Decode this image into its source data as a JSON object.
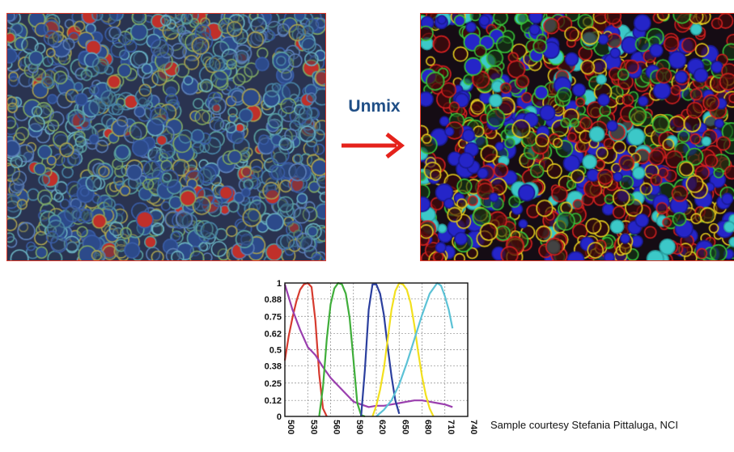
{
  "header": {
    "arrow_label": "Unmix"
  },
  "images": {
    "left": {
      "name": "mixed-fluorescence-image"
    },
    "right": {
      "name": "unmixed-fluorescence-image"
    }
  },
  "arrow": {
    "color": "#e5221b"
  },
  "credit": {
    "text": "Sample courtesy Stefania Pittaluga, NCI"
  },
  "chart_data": {
    "type": "line",
    "xlabel": "",
    "ylabel": "",
    "x_ticks": [
      "500",
      "530",
      "560",
      "590",
      "620",
      "650",
      "680",
      "710",
      "740"
    ],
    "y_ticks": [
      "0",
      "0.12",
      "0.25",
      "0.38",
      "0.5",
      "0.62",
      "0.75",
      "0.88",
      "1"
    ],
    "xlim": [
      500,
      740
    ],
    "ylim": [
      0,
      1
    ],
    "grid": true,
    "series": [
      {
        "color": "#d63b2f",
        "x": [
          500,
          505,
          510,
          515,
          520,
          525,
          530,
          535,
          540,
          545,
          550,
          555
        ],
        "y": [
          0.42,
          0.6,
          0.74,
          0.86,
          0.95,
          0.99,
          1.0,
          0.97,
          0.72,
          0.32,
          0.06,
          0
        ]
      },
      {
        "color": "#9a3fae",
        "x": [
          500,
          510,
          520,
          530,
          540,
          550,
          560,
          570,
          580,
          590,
          600,
          610,
          620,
          630,
          640,
          650,
          660,
          670,
          680,
          690,
          700,
          710,
          720
        ],
        "y": [
          0.99,
          0.8,
          0.65,
          0.52,
          0.46,
          0.37,
          0.29,
          0.23,
          0.17,
          0.11,
          0.09,
          0.07,
          0.08,
          0.08,
          0.09,
          0.1,
          0.11,
          0.12,
          0.12,
          0.11,
          0.1,
          0.09,
          0.07
        ]
      },
      {
        "color": "#3fae3a",
        "x": [
          545,
          550,
          555,
          560,
          565,
          570,
          575,
          580,
          585,
          590,
          595,
          600,
          605
        ],
        "y": [
          0,
          0.22,
          0.58,
          0.84,
          0.96,
          1.0,
          0.99,
          0.92,
          0.74,
          0.42,
          0.1,
          0.01,
          0
        ]
      },
      {
        "color": "#2b3f9e",
        "x": [
          600,
          605,
          610,
          615,
          620,
          625,
          630,
          635,
          640,
          645,
          650
        ],
        "y": [
          0,
          0.35,
          0.8,
          0.99,
          0.99,
          0.92,
          0.76,
          0.52,
          0.3,
          0.12,
          0.02
        ]
      },
      {
        "color": "#f2e01e",
        "x": [
          615,
          620,
          625,
          630,
          635,
          640,
          645,
          650,
          655,
          660,
          665,
          670,
          675,
          680,
          685,
          690,
          695
        ],
        "y": [
          0,
          0.08,
          0.2,
          0.36,
          0.58,
          0.8,
          0.94,
          1.0,
          0.99,
          0.95,
          0.85,
          0.68,
          0.48,
          0.3,
          0.16,
          0.06,
          0
        ]
      },
      {
        "color": "#5cc2d6",
        "x": [
          620,
          630,
          640,
          650,
          660,
          670,
          680,
          690,
          700,
          705,
          710,
          715,
          720
        ],
        "y": [
          0,
          0.05,
          0.12,
          0.24,
          0.4,
          0.58,
          0.76,
          0.92,
          1.0,
          0.98,
          0.9,
          0.8,
          0.66
        ]
      }
    ]
  }
}
